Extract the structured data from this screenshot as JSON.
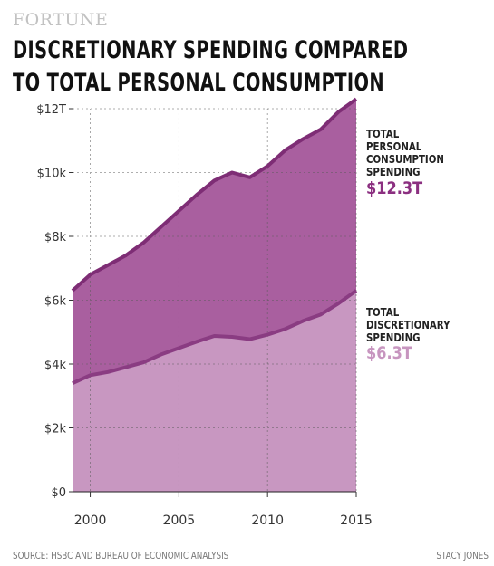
{
  "header": {
    "brand": "FORTUNE",
    "title_line1": "DISCRETIONARY SPENDING COMPARED",
    "title_line2": "TO TOTAL PERSONAL CONSUMPTION"
  },
  "footer": {
    "source": "SOURCE: HSBC AND BUREAU OF ECONOMIC ANALYSIS",
    "credit": "STACY JONES"
  },
  "annotations": {
    "total": {
      "label_lines": [
        "TOTAL",
        "PERSONAL",
        "CONSUMPTION",
        "SPENDING"
      ],
      "value": "$12.3T"
    },
    "discretionary": {
      "label_lines": [
        "TOTAL",
        "DISCRETIONARY",
        "SPENDING"
      ],
      "value": "$6.3T"
    }
  },
  "colors": {
    "total_fill": "#a95f9f",
    "total_line": "#7e2d75",
    "discretionary_fill": "#c897c1",
    "discretionary_line": "#8a3c82",
    "total_value_text": "#8b2f80",
    "discretionary_value_text": "#c795bf"
  },
  "chart_data": {
    "type": "area",
    "x": [
      1999,
      2000,
      2001,
      2002,
      2003,
      2004,
      2005,
      2006,
      2007,
      2008,
      2009,
      2010,
      2011,
      2012,
      2013,
      2014,
      2015
    ],
    "series": [
      {
        "name": "TOTAL PERSONAL CONSUMPTION SPENDING",
        "values": [
          6.3,
          6.8,
          7.1,
          7.4,
          7.8,
          8.3,
          8.8,
          9.3,
          9.75,
          10.0,
          9.85,
          10.2,
          10.7,
          11.05,
          11.35,
          11.9,
          12.3
        ]
      },
      {
        "name": "TOTAL DISCRETIONARY SPENDING",
        "values": [
          3.4,
          3.65,
          3.75,
          3.9,
          4.05,
          4.3,
          4.5,
          4.7,
          4.88,
          4.85,
          4.78,
          4.92,
          5.1,
          5.35,
          5.55,
          5.9,
          6.3
        ]
      }
    ],
    "xticks": [
      2000,
      2005,
      2010,
      2015
    ],
    "yticks": [
      0,
      2,
      4,
      6,
      8,
      10,
      12
    ],
    "ytick_labels": [
      "$0",
      "$2k",
      "$4k",
      "$6k",
      "$8k",
      "$10k",
      "$12T"
    ],
    "xlim": [
      1999,
      2015
    ],
    "ylim": [
      0,
      12
    ],
    "grid": true,
    "title": "DISCRETIONARY SPENDING COMPARED TO TOTAL PERSONAL CONSUMPTION",
    "xlabel": "",
    "ylabel": ""
  }
}
